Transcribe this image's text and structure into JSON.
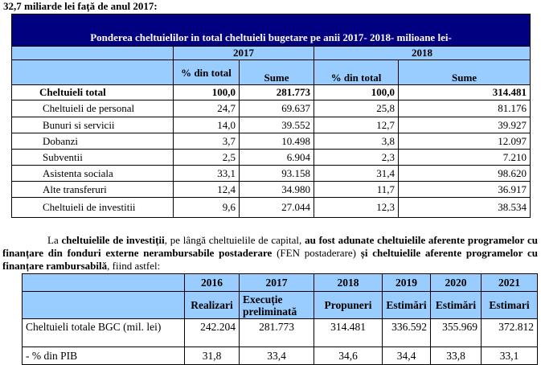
{
  "intro": "32,7 miliarde lei  față de anul 2017:",
  "table1": {
    "title": "Ponderea cheltuielilor in total cheltuieli bugetare pe anii 2017- 2018- milioane lei-",
    "years": [
      "2017",
      "2018"
    ],
    "subheaders": [
      "% din total",
      "Sume",
      "% din total",
      "Sume"
    ],
    "rows": [
      {
        "label": "Cheltuieli total",
        "p17": "100,0",
        "s17": "281.773",
        "p18": "100,0",
        "s18": "314.481"
      },
      {
        "label": "Cheltuieli de personal",
        "p17": "24,7",
        "s17": "69.637",
        "p18": "25,8",
        "s18": "81.176"
      },
      {
        "label": "Bunuri si servicii",
        "p17": "14,0",
        "s17": "39.552",
        "p18": "12,7",
        "s18": "39.927"
      },
      {
        "label": "Dobanzi",
        "p17": "3,7",
        "s17": "10.498",
        "p18": "3,8",
        "s18": "12.097"
      },
      {
        "label": "Subventii",
        "p17": "2,5",
        "s17": "6.904",
        "p18": "2,3",
        "s18": "7.210"
      },
      {
        "label": "Asistenta sociala",
        "p17": "33,1",
        "s17": "93.158",
        "p18": "31,4",
        "s18": "98.620"
      },
      {
        "label": "Alte transferuri",
        "p17": "12,4",
        "s17": "34.980",
        "p18": "11,7",
        "s18": "36.917"
      },
      {
        "label": "Cheltuieli de investitii",
        "p17": "9,6",
        "s17": "27.044",
        "p18": "12,3",
        "s18": "38.534"
      }
    ]
  },
  "paragraph": {
    "t1": "La ",
    "b1": "cheltuielile de investiții",
    "t2": ", pe lângă cheltuielile de capital, ",
    "b2": "au fost adunate cheltuielile aferente programelor cu finanțare din fonduri externe nerambursabile postaderare",
    "t3": " (FEN postaderare) ",
    "b3": "și cheltuielile aferente programelor cu finanțare rambursabilă",
    "t4": ", fiind astfel:"
  },
  "table2": {
    "years": [
      "2016",
      "2017",
      "2018",
      "2019",
      "2020",
      "2021"
    ],
    "types": [
      "Realizari",
      "Execuție preliminată",
      "Propuneri",
      "Estimări",
      "Estimări",
      "Estimari"
    ],
    "rows": [
      {
        "label": "Cheltuieli totale BGC (mil. lei)",
        "values": [
          "242.204",
          "281.773",
          "314.481",
          "336.592",
          "355.969",
          "372.812"
        ]
      },
      {
        "label": "- % din PIB",
        "values": [
          "31,8",
          "33,4",
          "34,6",
          "34,4",
          "33,8",
          "33,1"
        ]
      }
    ]
  }
}
